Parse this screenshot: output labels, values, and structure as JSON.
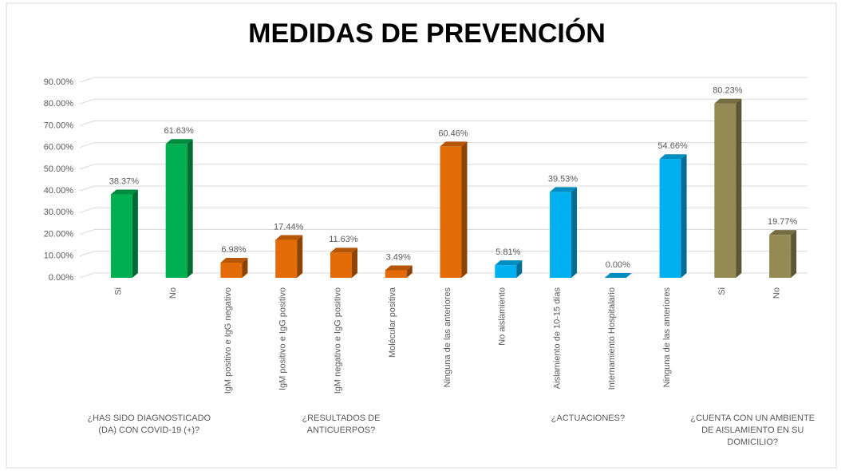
{
  "chart_data": {
    "type": "bar3d",
    "title": "MEDIDAS DE PREVENCIÓN",
    "categories": [
      "Si",
      "No",
      "IgM positivo e IgG negativo",
      "IgM positivo e IgG positivo",
      "IgM negativo e IgG positivo",
      "Molécular positiva",
      "Ninguna de las anteriores",
      "No aislamiento",
      "Aislamiento de 10-15 días",
      "Internamiento Hospitalario",
      "Ninguna de las anteriores",
      "Si",
      "No"
    ],
    "series": [
      {
        "name": "¿HAS SIDO DIAGNOSTICADO (DA) CON COVID-19 (+)?",
        "color": "#00b050",
        "values": [
          38.37,
          61.63,
          null,
          null,
          null,
          null,
          null,
          null,
          null,
          null,
          null,
          null,
          null
        ],
        "value_labels": [
          "38.37%",
          "61.63%",
          null,
          null,
          null,
          null,
          null,
          null,
          null,
          null,
          null,
          null,
          null
        ]
      },
      {
        "name": "¿RESULTADOS DE ANTICUERPOS?",
        "color": "#e36c09",
        "values": [
          null,
          null,
          6.98,
          17.44,
          11.63,
          3.49,
          60.46,
          null,
          null,
          null,
          null,
          null,
          null
        ],
        "value_labels": [
          null,
          null,
          "6.98%",
          "17.44%",
          "11.63%",
          "3.49%",
          "60.46%",
          null,
          null,
          null,
          null,
          null,
          null
        ]
      },
      {
        "name": "¿ACTUACIONES?",
        "color": "#00b0f0",
        "values": [
          null,
          null,
          null,
          null,
          null,
          null,
          null,
          5.81,
          39.53,
          0.0,
          54.66,
          null,
          null
        ],
        "value_labels": [
          null,
          null,
          null,
          null,
          null,
          null,
          null,
          "5.81%",
          "39.53%",
          "0.00%",
          "54.66%",
          null,
          null
        ]
      },
      {
        "name": "¿CUENTA CON UN AMBIENTE DE AISLAMIENTO EN SU DOMICILIO?",
        "color": "#948a54",
        "values": [
          null,
          null,
          null,
          null,
          null,
          null,
          null,
          null,
          null,
          null,
          null,
          80.23,
          19.77
        ],
        "value_labels": [
          null,
          null,
          null,
          null,
          null,
          null,
          null,
          null,
          null,
          null,
          null,
          "80.23%",
          "19.77%"
        ]
      }
    ],
    "ylim": [
      0,
      90
    ],
    "yticks": [
      {
        "value": 0,
        "label": "0.00%"
      },
      {
        "value": 10,
        "label": "10.00%"
      },
      {
        "value": 20,
        "label": "20.00%"
      },
      {
        "value": 30,
        "label": "30.00%"
      },
      {
        "value": 40,
        "label": "40.00%"
      },
      {
        "value": 50,
        "label": "50.00%"
      },
      {
        "value": 60,
        "label": "60.00%"
      },
      {
        "value": 70,
        "label": "70.00%"
      },
      {
        "value": 80,
        "label": "80.00%"
      },
      {
        "value": 90,
        "label": "90.00%"
      }
    ],
    "grid": true
  }
}
